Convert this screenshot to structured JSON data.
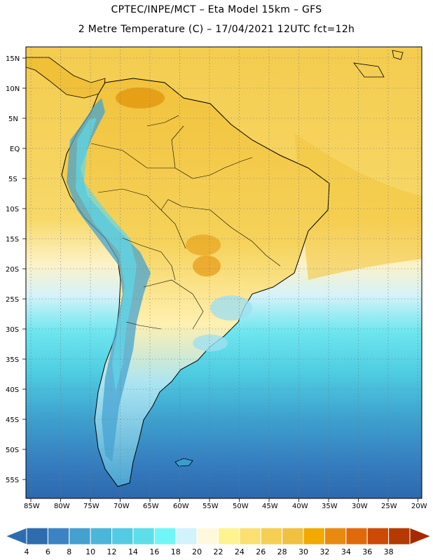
{
  "header": {
    "line1": "CPTEC/INPE/MCT –  Eta Model 15km – GFS",
    "line2": "2 Metre Temperature (C) – 17/04/2021 12UTC fct=12h"
  },
  "axes": {
    "lat_labels": [
      "15N",
      "10N",
      "5N",
      "EQ",
      "5S",
      "10S",
      "15S",
      "20S",
      "25S",
      "30S",
      "35S",
      "40S",
      "45S",
      "50S",
      "55S"
    ],
    "lon_labels": [
      "85W",
      "80W",
      "75W",
      "70W",
      "65W",
      "60W",
      "55W",
      "50W",
      "45W",
      "40W",
      "35W",
      "30W",
      "25W",
      "20W"
    ]
  },
  "colorbar": {
    "ticks": [
      "4",
      "6",
      "8",
      "10",
      "12",
      "14",
      "16",
      "18",
      "20",
      "22",
      "24",
      "26",
      "28",
      "30",
      "32",
      "34",
      "36",
      "38"
    ],
    "colors": [
      "#2e6cb0",
      "#3a84c4",
      "#44a0cf",
      "#4cb6da",
      "#52cce3",
      "#5ddfe9",
      "#6ff7f7",
      "#d2f3fb",
      "#fff8dc",
      "#fff38f",
      "#fbe070",
      "#f5cf52",
      "#f0c040",
      "#f2a900",
      "#e98a10",
      "#e06a0a",
      "#cc4a05",
      "#b43a02"
    ]
  },
  "map": {
    "ocean_top_color": "#f2c744",
    "ocean_south_color": "#2e6cb0"
  }
}
